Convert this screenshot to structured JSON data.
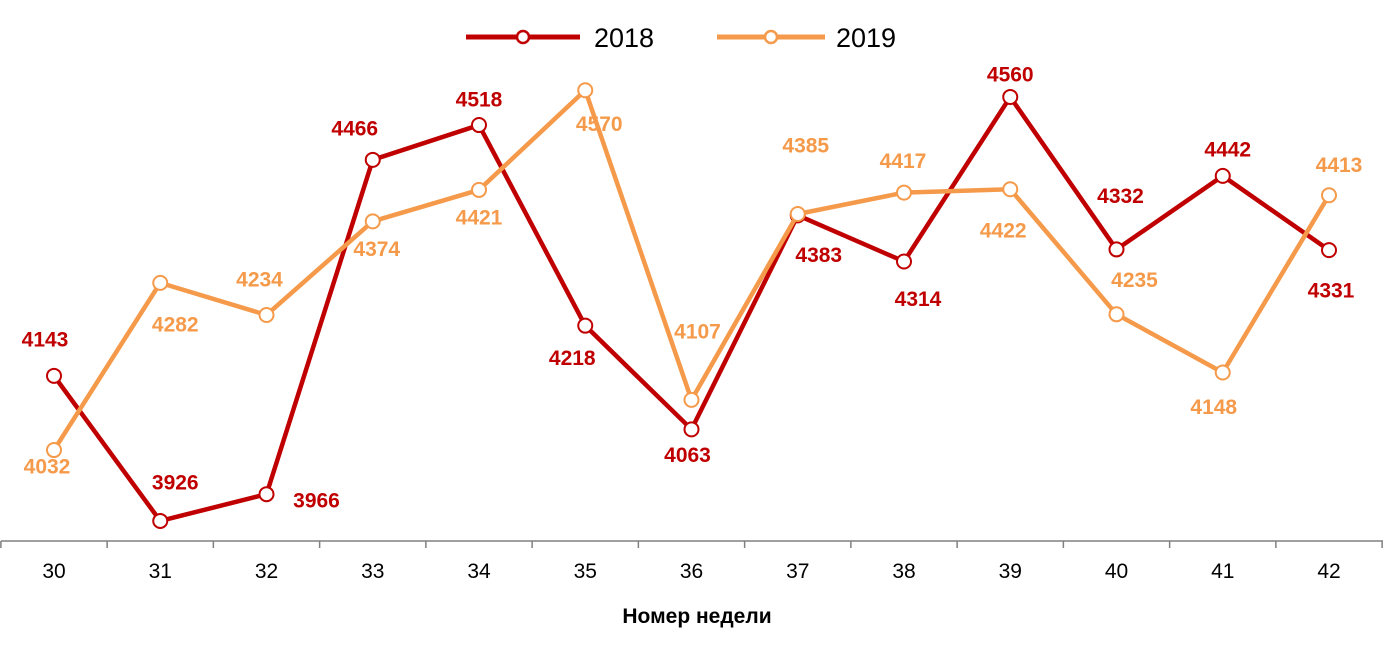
{
  "chart_data": {
    "type": "line",
    "title": "",
    "xlabel": "Номер недели",
    "ylabel": "",
    "categories": [
      "30",
      "31",
      "32",
      "33",
      "34",
      "35",
      "36",
      "37",
      "38",
      "39",
      "40",
      "41",
      "42"
    ],
    "series": [
      {
        "name": "2018",
        "color": "#C00000",
        "values": [
          4143,
          3926,
          3966,
          4466,
          4518,
          4218,
          4063,
          4383,
          4314,
          4560,
          4332,
          4442,
          4331
        ]
      },
      {
        "name": "2019",
        "color": "#F59A4A",
        "values": [
          4032,
          4282,
          4234,
          4374,
          4421,
          4570,
          4107,
          4385,
          4417,
          4422,
          4235,
          4148,
          4413
        ]
      }
    ],
    "ylim": [
      3896,
      4705
    ],
    "grid": false,
    "y_axis_visible": false,
    "data_labels": true,
    "legend": "top-center"
  }
}
